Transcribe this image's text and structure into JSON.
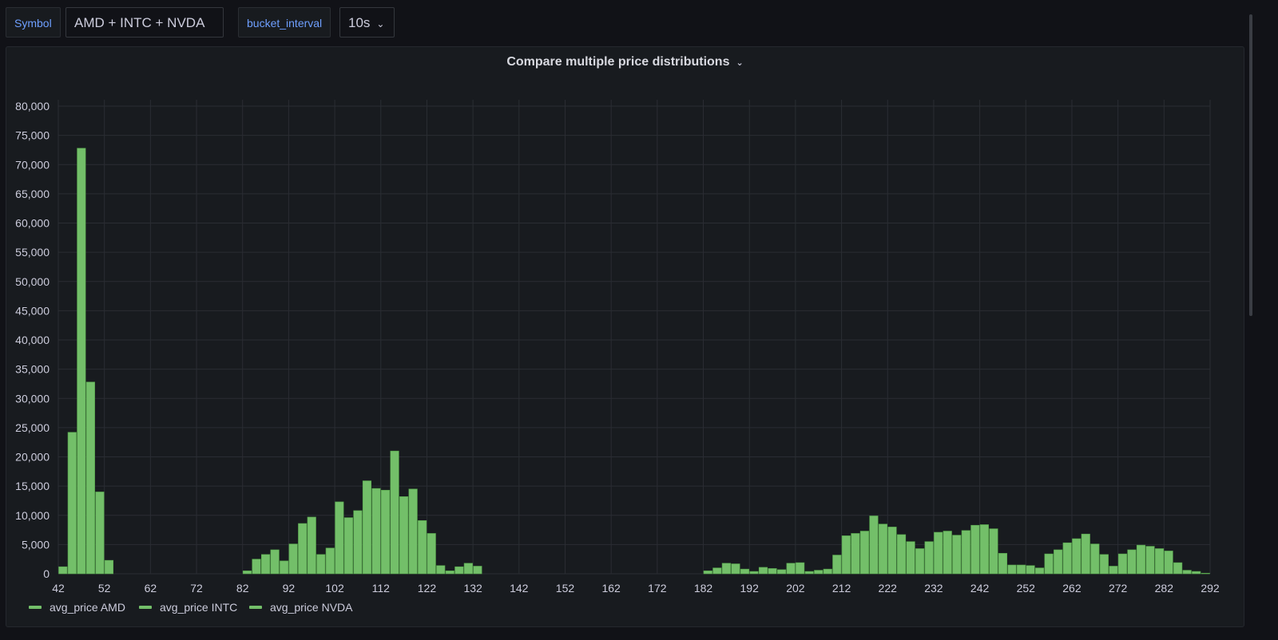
{
  "variables": {
    "symbol_label": "Symbol",
    "symbol_value": "AMD + INTC + NVDA",
    "bucket_label": "bucket_interval",
    "bucket_value": "10s"
  },
  "panel": {
    "title": "Compare multiple price distributions"
  },
  "colors": {
    "bar_fill": "#73bf69",
    "bar_stroke": "#56a64b",
    "grid": "#2a2d33",
    "tick_text": "#ccccdc"
  },
  "chart_data": {
    "type": "bar",
    "title": "Compare multiple price distributions",
    "xlim": [
      42,
      292
    ],
    "ylim": [
      0,
      80000
    ],
    "bin_width": 2,
    "grid": true,
    "legend_position": "bottom-left",
    "x_ticks": [
      "42",
      "52",
      "62",
      "72",
      "82",
      "92",
      "102",
      "112",
      "122",
      "132",
      "142",
      "152",
      "162",
      "172",
      "182",
      "192",
      "202",
      "212",
      "222",
      "232",
      "242",
      "252",
      "262",
      "272",
      "282",
      "292"
    ],
    "y_ticks": [
      "0",
      "5,000",
      "10,000",
      "15,000",
      "20,000",
      "25,000",
      "30,000",
      "35,000",
      "40,000",
      "45,000",
      "50,000",
      "55,000",
      "60,000",
      "65,000",
      "70,000",
      "75,000",
      "80,000"
    ],
    "legend": [
      "avg_price AMD",
      "avg_price INTC",
      "avg_price NVDA"
    ],
    "bins": [
      {
        "x": 42,
        "v": 1200
      },
      {
        "x": 44,
        "v": 24200
      },
      {
        "x": 46,
        "v": 72800
      },
      {
        "x": 48,
        "v": 32800
      },
      {
        "x": 50,
        "v": 14000
      },
      {
        "x": 52,
        "v": 2300
      },
      {
        "x": 82,
        "v": 500
      },
      {
        "x": 84,
        "v": 2500
      },
      {
        "x": 86,
        "v": 3300
      },
      {
        "x": 88,
        "v": 4100
      },
      {
        "x": 90,
        "v": 2200
      },
      {
        "x": 92,
        "v": 5100
      },
      {
        "x": 94,
        "v": 8600
      },
      {
        "x": 96,
        "v": 9700
      },
      {
        "x": 98,
        "v": 3300
      },
      {
        "x": 100,
        "v": 4400
      },
      {
        "x": 102,
        "v": 12300
      },
      {
        "x": 104,
        "v": 9600
      },
      {
        "x": 106,
        "v": 10800
      },
      {
        "x": 108,
        "v": 15900
      },
      {
        "x": 110,
        "v": 14600
      },
      {
        "x": 112,
        "v": 14300
      },
      {
        "x": 114,
        "v": 21000
      },
      {
        "x": 116,
        "v": 13200
      },
      {
        "x": 118,
        "v": 14500
      },
      {
        "x": 120,
        "v": 9100
      },
      {
        "x": 122,
        "v": 6900
      },
      {
        "x": 124,
        "v": 1400
      },
      {
        "x": 126,
        "v": 500
      },
      {
        "x": 128,
        "v": 1200
      },
      {
        "x": 130,
        "v": 1800
      },
      {
        "x": 132,
        "v": 1300
      },
      {
        "x": 182,
        "v": 500
      },
      {
        "x": 184,
        "v": 1000
      },
      {
        "x": 186,
        "v": 1800
      },
      {
        "x": 188,
        "v": 1700
      },
      {
        "x": 190,
        "v": 800
      },
      {
        "x": 192,
        "v": 400
      },
      {
        "x": 194,
        "v": 1100
      },
      {
        "x": 196,
        "v": 900
      },
      {
        "x": 198,
        "v": 700
      },
      {
        "x": 200,
        "v": 1800
      },
      {
        "x": 202,
        "v": 1900
      },
      {
        "x": 204,
        "v": 400
      },
      {
        "x": 206,
        "v": 600
      },
      {
        "x": 208,
        "v": 800
      },
      {
        "x": 210,
        "v": 3200
      },
      {
        "x": 212,
        "v": 6500
      },
      {
        "x": 214,
        "v": 6900
      },
      {
        "x": 216,
        "v": 7300
      },
      {
        "x": 218,
        "v": 9900
      },
      {
        "x": 220,
        "v": 8500
      },
      {
        "x": 222,
        "v": 8000
      },
      {
        "x": 224,
        "v": 6700
      },
      {
        "x": 226,
        "v": 5500
      },
      {
        "x": 228,
        "v": 4300
      },
      {
        "x": 230,
        "v": 5500
      },
      {
        "x": 232,
        "v": 7100
      },
      {
        "x": 234,
        "v": 7300
      },
      {
        "x": 236,
        "v": 6600
      },
      {
        "x": 238,
        "v": 7400
      },
      {
        "x": 240,
        "v": 8300
      },
      {
        "x": 242,
        "v": 8400
      },
      {
        "x": 244,
        "v": 7700
      },
      {
        "x": 246,
        "v": 3500
      },
      {
        "x": 248,
        "v": 1500
      },
      {
        "x": 250,
        "v": 1500
      },
      {
        "x": 252,
        "v": 1400
      },
      {
        "x": 254,
        "v": 1000
      },
      {
        "x": 256,
        "v": 3400
      },
      {
        "x": 258,
        "v": 4100
      },
      {
        "x": 260,
        "v": 5300
      },
      {
        "x": 262,
        "v": 6000
      },
      {
        "x": 264,
        "v": 6800
      },
      {
        "x": 266,
        "v": 5100
      },
      {
        "x": 268,
        "v": 3300
      },
      {
        "x": 270,
        "v": 1300
      },
      {
        "x": 272,
        "v": 3400
      },
      {
        "x": 274,
        "v": 4100
      },
      {
        "x": 276,
        "v": 4900
      },
      {
        "x": 278,
        "v": 4700
      },
      {
        "x": 280,
        "v": 4300
      },
      {
        "x": 282,
        "v": 3900
      },
      {
        "x": 284,
        "v": 1900
      },
      {
        "x": 286,
        "v": 600
      },
      {
        "x": 288,
        "v": 400
      },
      {
        "x": 290,
        "v": 100
      }
    ]
  }
}
